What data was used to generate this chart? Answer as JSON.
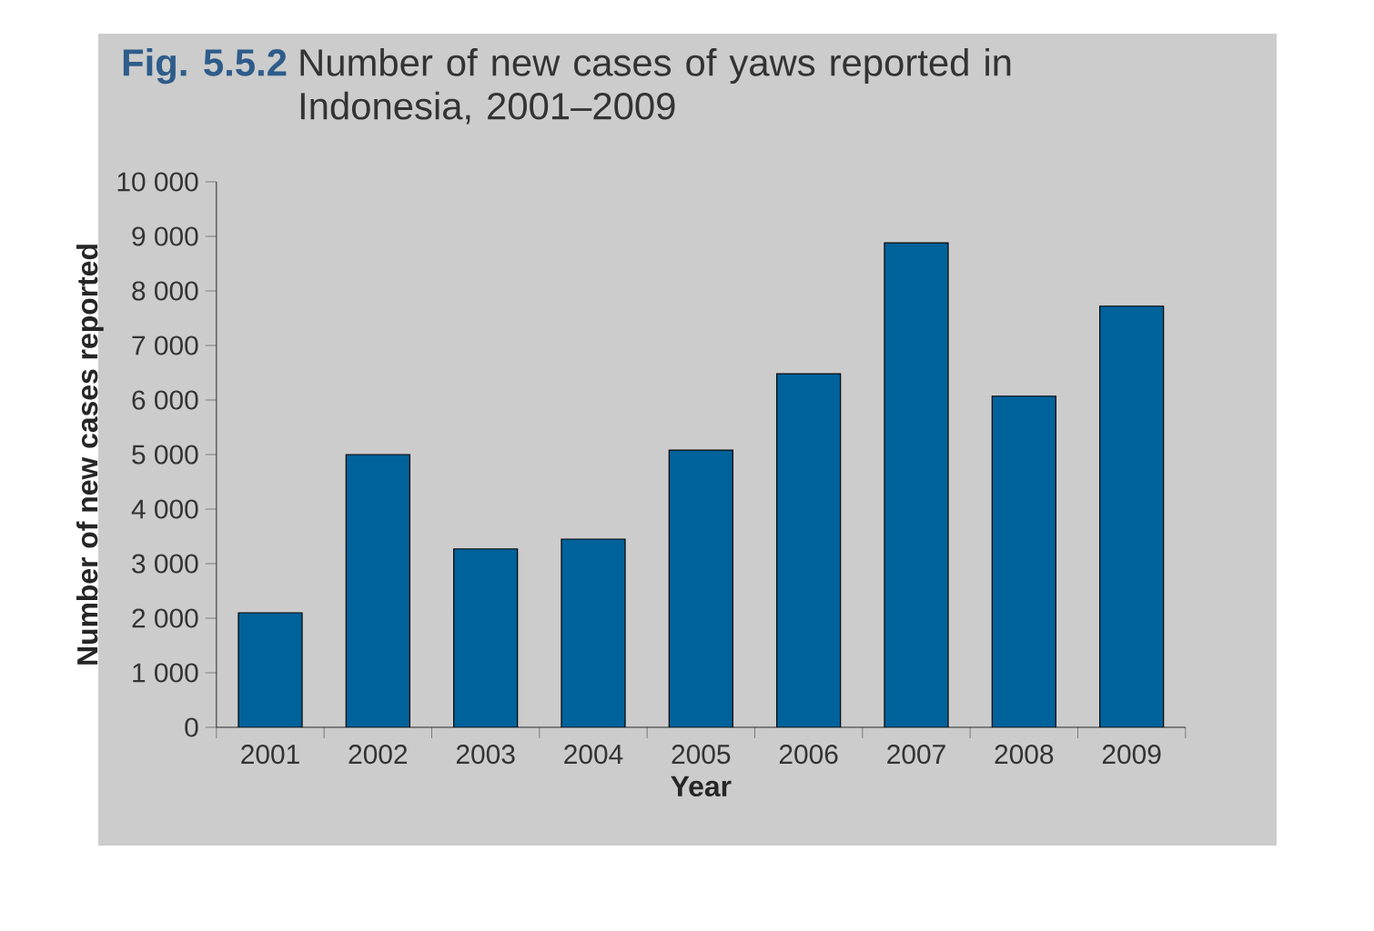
{
  "chart_data": {
    "type": "bar",
    "title": "Number of new cases of yaws reported in Indonesia, 2001–2009",
    "annotations": [
      "Fig. 5.5.2"
    ],
    "xlabel": "Year",
    "ylabel": "Number of new cases reported",
    "categories": [
      "2001",
      "2002",
      "2003",
      "2004",
      "2005",
      "2006",
      "2007",
      "2008",
      "2009"
    ],
    "values": [
      2100,
      5000,
      3270,
      3450,
      5080,
      6480,
      8880,
      6070,
      7720
    ],
    "color": "#00629b",
    "ylim": [
      0,
      10000
    ],
    "yticks": [
      0,
      {
        "value": 1000,
        "label": "1 000"
      },
      {
        "value": 2000,
        "label": "2 000"
      },
      {
        "value": 3000,
        "label": "3 000"
      },
      {
        "value": 4000,
        "label": "4 000"
      },
      {
        "value": 5000,
        "label": "5 000"
      },
      {
        "value": 6000,
        "label": "6 000"
      },
      {
        "value": 7000,
        "label": "7 000"
      },
      {
        "value": 8000,
        "label": "8 000"
      },
      {
        "value": 9000,
        "label": "9 000"
      },
      {
        "value": 10000,
        "label": "10 000"
      }
    ]
  }
}
